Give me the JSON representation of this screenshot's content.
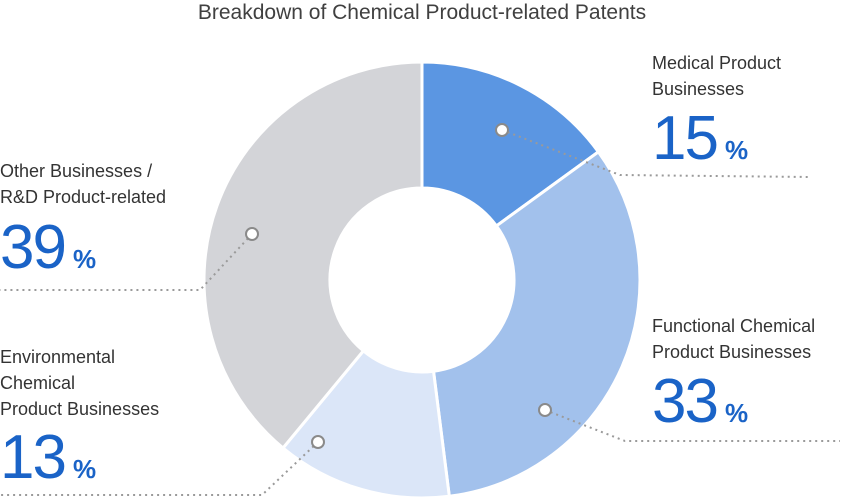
{
  "chart_data": {
    "type": "pie",
    "title": "Breakdown of Chemical Product-related Patents",
    "donut": true,
    "unit": "%",
    "slices": [
      {
        "label_lines": [
          "Medical Product",
          "Businesses"
        ],
        "value": 15,
        "color": "#5b96e2"
      },
      {
        "label_lines": [
          "Functional Chemical",
          "Product Businesses"
        ],
        "value": 33,
        "color": "#a2c1ec"
      },
      {
        "label_lines": [
          "Environmental",
          "Chemical",
          "Product Businesses"
        ],
        "value": 13,
        "color": "#dbe6f8"
      },
      {
        "label_lines": [
          "Other Businesses /",
          "R&D Product-related"
        ],
        "value": 39,
        "color": "#d3d4d8"
      }
    ]
  }
}
